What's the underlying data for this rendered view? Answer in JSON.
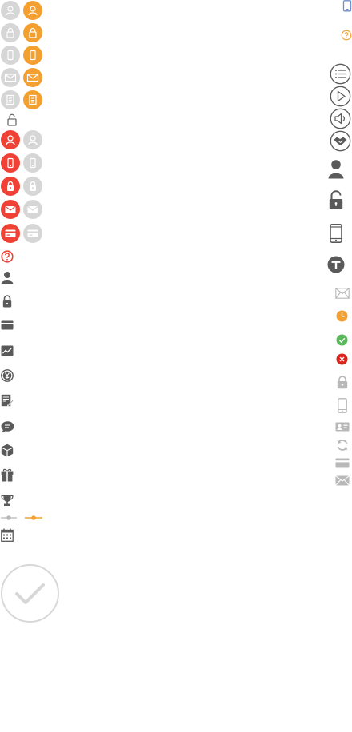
{
  "sheet": {
    "colors": {
      "gray_disc": "#d6d6d6",
      "orange_disc": "#f4a030",
      "red_disc": "#ef4136",
      "dark_glyph": "#5a5a5a",
      "light_glyph": "#b8b8b8",
      "success": "#5cb85c",
      "error": "#d9251d"
    },
    "left_column": {
      "disc_pairs_top": [
        {
          "gray": "user-icon",
          "orange": "user-icon"
        },
        {
          "gray": "lock-icon",
          "orange": "lock-icon"
        },
        {
          "gray": "phone-icon",
          "orange": "phone-icon"
        },
        {
          "gray": "mail-icon",
          "orange": "mail-icon"
        },
        {
          "gray": "document-icon",
          "orange": "document-icon"
        }
      ],
      "unlocked": "unlock-icon",
      "disc_pairs_red": [
        {
          "red": "user-icon",
          "gray": "user-icon"
        },
        {
          "red": "phone-icon",
          "gray": "phone-icon"
        },
        {
          "red": "lock-icon",
          "gray": "lock-icon"
        },
        {
          "red": "mail-icon",
          "gray": "mail-icon"
        },
        {
          "red": "card-icon",
          "gray": "card-icon"
        }
      ],
      "singles": [
        "help-icon",
        "person-icon",
        "lock-icon",
        "card-icon",
        "chart-icon",
        "yen-icon",
        "edit-icon",
        "chat-icon",
        "box-icon",
        "gift-icon",
        "trophy-icon",
        "slider-icon",
        "calendar-icon"
      ],
      "big": "checkmark-icon"
    },
    "right_column": {
      "icons": [
        "phone-icon",
        "help-icon",
        "list-icon",
        "play-icon",
        "speaker-icon",
        "handshake-icon",
        "person-icon",
        "unlock-icon",
        "phone-icon",
        "brand-t-icon",
        "mail-icon",
        "clock-icon",
        "success-icon",
        "error-icon",
        "lock-icon",
        "phone-icon",
        "id-card-icon",
        "refresh-icon",
        "card-icon",
        "mail-icon"
      ]
    }
  }
}
